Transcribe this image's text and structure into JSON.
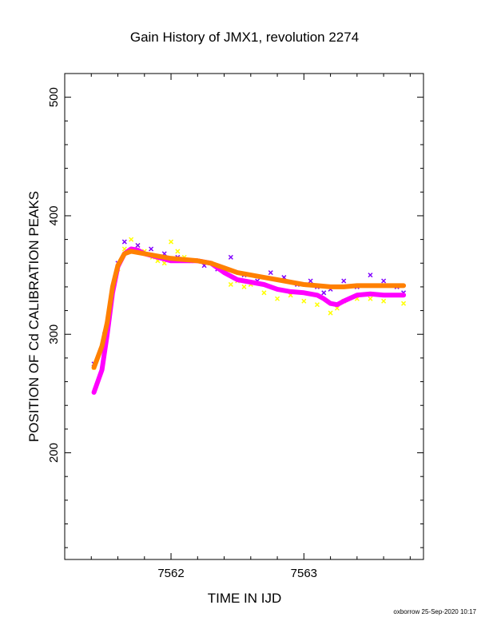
{
  "chart_data": {
    "type": "scatter",
    "title": "Gain History of JMX1, revolution 2274",
    "xlabel": "TIME IN IJD",
    "ylabel": "POSITION OF Cd CALIBRATION PEAKS",
    "xlim": [
      7561.2,
      7563.9
    ],
    "ylim": [
      110,
      520
    ],
    "x_ticks": [
      7562,
      7563
    ],
    "x_tick_labels": [
      "7562",
      "7563"
    ],
    "y_ticks": [
      200,
      300,
      400,
      500
    ],
    "y_tick_labels": [
      "200",
      "300",
      "400",
      "500"
    ],
    "grid": false,
    "footer": "oxborrow 25-Sep-2020 10:17",
    "series": [
      {
        "color": "#ffff00",
        "marker": "x",
        "points": [
          [
            7561.42,
            272
          ],
          [
            7561.5,
            290
          ],
          [
            7561.55,
            330
          ],
          [
            7561.6,
            355
          ],
          [
            7561.65,
            372
          ],
          [
            7561.7,
            380
          ],
          [
            7561.75,
            375
          ],
          [
            7561.8,
            370
          ],
          [
            7561.86,
            365
          ],
          [
            7561.9,
            362
          ],
          [
            7561.95,
            360
          ],
          [
            7562.0,
            378
          ],
          [
            7562.05,
            370
          ],
          [
            7562.1,
            365
          ],
          [
            7562.2,
            362
          ],
          [
            7562.3,
            360
          ],
          [
            7562.4,
            355
          ],
          [
            7562.45,
            342
          ],
          [
            7562.5,
            345
          ],
          [
            7562.55,
            340
          ],
          [
            7562.6,
            342
          ],
          [
            7562.7,
            335
          ],
          [
            7562.8,
            330
          ],
          [
            7562.9,
            333
          ],
          [
            7563.0,
            328
          ],
          [
            7563.1,
            325
          ],
          [
            7563.2,
            318
          ],
          [
            7563.25,
            322
          ],
          [
            7563.3,
            328
          ],
          [
            7563.4,
            330
          ],
          [
            7563.5,
            330
          ],
          [
            7563.6,
            328
          ],
          [
            7563.75,
            326
          ]
        ]
      },
      {
        "color": "#8000ff",
        "marker": "x",
        "points": [
          [
            7561.42,
            275
          ],
          [
            7561.5,
            300
          ],
          [
            7561.6,
            360
          ],
          [
            7561.65,
            378
          ],
          [
            7561.75,
            375
          ],
          [
            7561.85,
            372
          ],
          [
            7561.95,
            368
          ],
          [
            7562.05,
            365
          ],
          [
            7562.15,
            362
          ],
          [
            7562.25,
            358
          ],
          [
            7562.35,
            355
          ],
          [
            7562.45,
            365
          ],
          [
            7562.55,
            350
          ],
          [
            7562.65,
            345
          ],
          [
            7562.75,
            352
          ],
          [
            7562.85,
            348
          ],
          [
            7562.95,
            342
          ],
          [
            7563.05,
            345
          ],
          [
            7563.1,
            340
          ],
          [
            7563.15,
            335
          ],
          [
            7563.2,
            338
          ],
          [
            7563.3,
            345
          ],
          [
            7563.4,
            340
          ],
          [
            7563.5,
            350
          ],
          [
            7563.6,
            345
          ],
          [
            7563.7,
            340
          ],
          [
            7563.75,
            335
          ]
        ]
      },
      {
        "color": "#ff00ff",
        "marker": "line",
        "points": [
          [
            7561.42,
            251
          ],
          [
            7561.48,
            270
          ],
          [
            7561.52,
            300
          ],
          [
            7561.56,
            335
          ],
          [
            7561.6,
            357
          ],
          [
            7561.65,
            368
          ],
          [
            7561.7,
            372
          ],
          [
            7561.75,
            371
          ],
          [
            7561.8,
            368
          ],
          [
            7561.9,
            365
          ],
          [
            7562.0,
            362
          ],
          [
            7562.1,
            362
          ],
          [
            7562.2,
            362
          ],
          [
            7562.3,
            360
          ],
          [
            7562.4,
            352
          ],
          [
            7562.5,
            346
          ],
          [
            7562.6,
            344
          ],
          [
            7562.7,
            342
          ],
          [
            7562.8,
            338
          ],
          [
            7562.9,
            336
          ],
          [
            7563.0,
            335
          ],
          [
            7563.1,
            333
          ],
          [
            7563.15,
            330
          ],
          [
            7563.2,
            326
          ],
          [
            7563.25,
            325
          ],
          [
            7563.3,
            328
          ],
          [
            7563.4,
            333
          ],
          [
            7563.5,
            334
          ],
          [
            7563.6,
            333
          ],
          [
            7563.75,
            333
          ]
        ]
      },
      {
        "color": "#ff8000",
        "marker": "line",
        "points": [
          [
            7561.42,
            272
          ],
          [
            7561.48,
            290
          ],
          [
            7561.52,
            310
          ],
          [
            7561.56,
            340
          ],
          [
            7561.6,
            358
          ],
          [
            7561.65,
            368
          ],
          [
            7561.7,
            370
          ],
          [
            7561.75,
            369
          ],
          [
            7561.8,
            368
          ],
          [
            7561.9,
            366
          ],
          [
            7562.0,
            364
          ],
          [
            7562.1,
            363
          ],
          [
            7562.2,
            362
          ],
          [
            7562.3,
            360
          ],
          [
            7562.4,
            356
          ],
          [
            7562.5,
            352
          ],
          [
            7562.6,
            350
          ],
          [
            7562.7,
            348
          ],
          [
            7562.8,
            346
          ],
          [
            7562.9,
            344
          ],
          [
            7563.0,
            342
          ],
          [
            7563.1,
            341
          ],
          [
            7563.2,
            340
          ],
          [
            7563.3,
            340
          ],
          [
            7563.4,
            341
          ],
          [
            7563.5,
            341
          ],
          [
            7563.6,
            341
          ],
          [
            7563.75,
            341
          ]
        ]
      }
    ]
  }
}
